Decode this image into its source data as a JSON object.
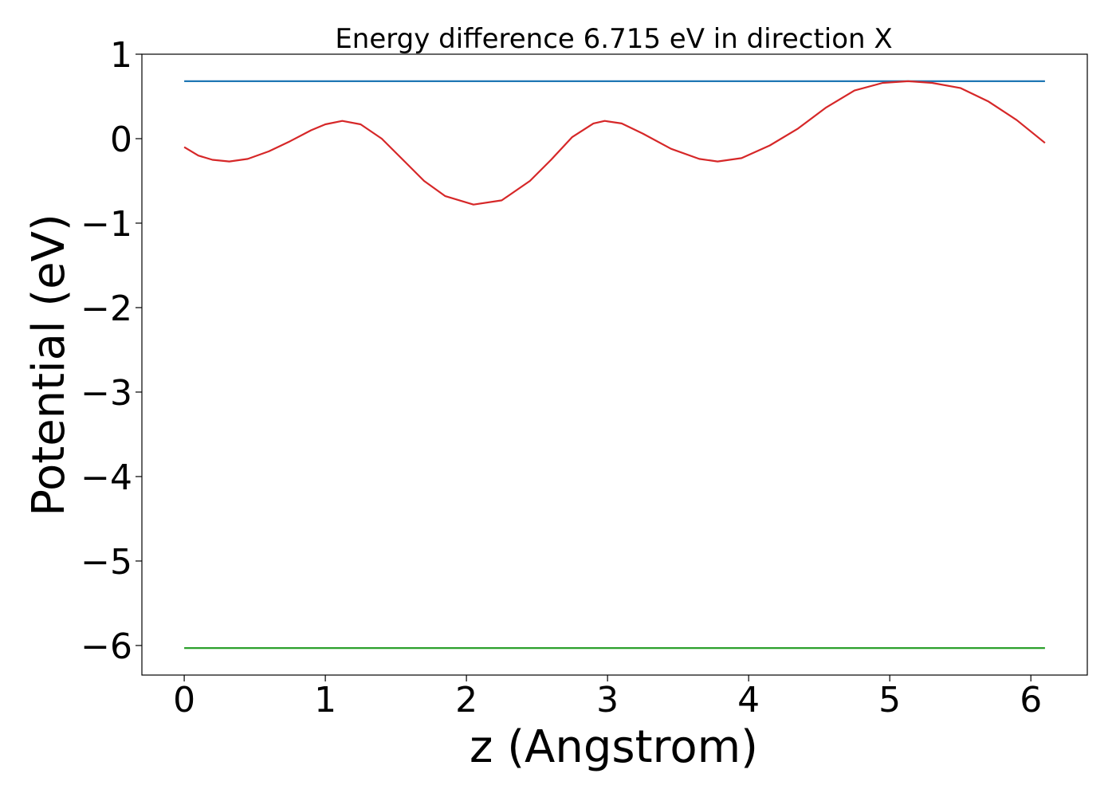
{
  "chart_data": {
    "type": "line",
    "title": "Energy difference 6.715 eV in direction X",
    "xlabel": "z (Angstrom)",
    "ylabel": "Potential (eV)",
    "xlim": [
      -0.3,
      6.4
    ],
    "ylim": [
      -6.35,
      1.0
    ],
    "x_ticks": [
      0,
      1,
      2,
      3,
      4,
      5,
      6
    ],
    "y_ticks": [
      1,
      0,
      -1,
      -2,
      -3,
      -4,
      -5,
      -6
    ],
    "x_tick_labels": [
      "0",
      "1",
      "2",
      "3",
      "4",
      "5",
      "6"
    ],
    "y_tick_labels": [
      "1",
      "0",
      "−1",
      "−2",
      "−3",
      "−4",
      "−5",
      "−6"
    ],
    "grid": false,
    "series": [
      {
        "color": "#1f77b4",
        "x": [
          0,
          6.1
        ],
        "y": [
          0.68,
          0.68
        ]
      },
      {
        "color": "#2ca02c",
        "x": [
          0,
          6.1
        ],
        "y": [
          -6.03,
          -6.03
        ]
      },
      {
        "color": "#d62728",
        "x": [
          0,
          0.1,
          0.2,
          0.32,
          0.45,
          0.6,
          0.75,
          0.9,
          1.0,
          1.12,
          1.25,
          1.4,
          1.55,
          1.7,
          1.85,
          2.05,
          2.25,
          2.45,
          2.6,
          2.75,
          2.9,
          2.98,
          3.1,
          3.25,
          3.45,
          3.65,
          3.78,
          3.95,
          4.15,
          4.35,
          4.55,
          4.75,
          4.95,
          5.13,
          5.3,
          5.5,
          5.7,
          5.9,
          6.1
        ],
        "y": [
          -0.1,
          -0.2,
          -0.25,
          -0.27,
          -0.24,
          -0.15,
          -0.03,
          0.1,
          0.17,
          0.21,
          0.17,
          0.0,
          -0.25,
          -0.5,
          -0.68,
          -0.78,
          -0.73,
          -0.5,
          -0.25,
          0.02,
          0.18,
          0.21,
          0.18,
          0.06,
          -0.12,
          -0.24,
          -0.27,
          -0.23,
          -0.08,
          0.12,
          0.37,
          0.57,
          0.66,
          0.68,
          0.66,
          0.6,
          0.44,
          0.22,
          -0.05
        ]
      }
    ]
  }
}
